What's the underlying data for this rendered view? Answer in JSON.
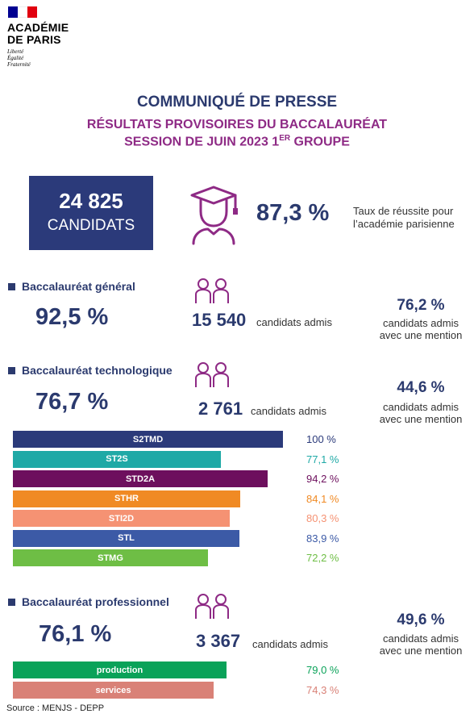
{
  "header": {
    "logo_line1": "ACADÉMIE",
    "logo_line2": "DE PARIS",
    "motto": [
      "Liberté",
      "Égalité",
      "Fraternité"
    ],
    "flag_colors": [
      "#000091",
      "#ffffff",
      "#e1000f"
    ]
  },
  "title": "COMMUNIQUÉ DE PRESSE",
  "subtitle_line1": "RÉSULTATS PROVISOIRES DU BACCALAURÉAT",
  "subtitle_line2_prefix": "SESSION DE JUIN 2023 1",
  "subtitle_line2_sup": "ER",
  "subtitle_line2_suffix": " GROUPE",
  "summary": {
    "candidates_number": "24 825",
    "candidates_label": "CANDIDATS",
    "icon": "graduate-icon",
    "success_rate": "87,3 %",
    "success_label_line1": "Taux de réussite pour",
    "success_label_line2": "l’académie parisienne"
  },
  "sections": [
    {
      "title": "Baccalauréat général",
      "rate": "92,5 %",
      "icon": "students-icon",
      "admitted": "15 540",
      "admitted_label": "candidats admis",
      "mention_pct": "76,2 %",
      "mention_line1": "candidats admis",
      "mention_line2": "avec une mention"
    },
    {
      "title": "Baccalauréat technologique",
      "rate": "76,7 %",
      "icon": "students-icon",
      "admitted": "2 761",
      "admitted_label": "candidats admis",
      "mention_pct": "44,6 %",
      "mention_line1": "candidats admis",
      "mention_line2": "avec une mention"
    },
    {
      "title": "Baccalauréat professionnel",
      "rate": "76,1 %",
      "icon": "students-icon",
      "admitted": "3 367",
      "admitted_label": "candidats admis",
      "mention_pct": "49,6 %",
      "mention_line1": "candidats admis",
      "mention_line2": "avec une mention"
    }
  ],
  "chart_data": [
    {
      "type": "bar",
      "orientation": "horizontal",
      "categories": [
        "S2TMD",
        "ST2S",
        "STD2A",
        "STHR",
        "STI2D",
        "STL",
        "STMG"
      ],
      "values": [
        100,
        77.1,
        94.2,
        84.1,
        80.3,
        83.9,
        72.2
      ],
      "value_labels": [
        "100 %",
        "77,1 %",
        "94,2 %",
        "84,1 %",
        "80,3 %",
        "83,9 %",
        "72,2 %"
      ],
      "colors": [
        "#2b3a7a",
        "#1fa9a6",
        "#6d0f5d",
        "#f08a24",
        "#f59273",
        "#3c5aa6",
        "#6ebe45"
      ],
      "xlim": [
        0,
        100
      ]
    },
    {
      "type": "bar",
      "orientation": "horizontal",
      "categories": [
        "production",
        "services"
      ],
      "values": [
        79.0,
        74.3
      ],
      "value_labels": [
        "79,0 %",
        "74,3 %"
      ],
      "colors": [
        "#0aa259",
        "#d98177"
      ],
      "xlim": [
        0,
        100
      ]
    }
  ],
  "source": "Source : MENJS - DEPP"
}
